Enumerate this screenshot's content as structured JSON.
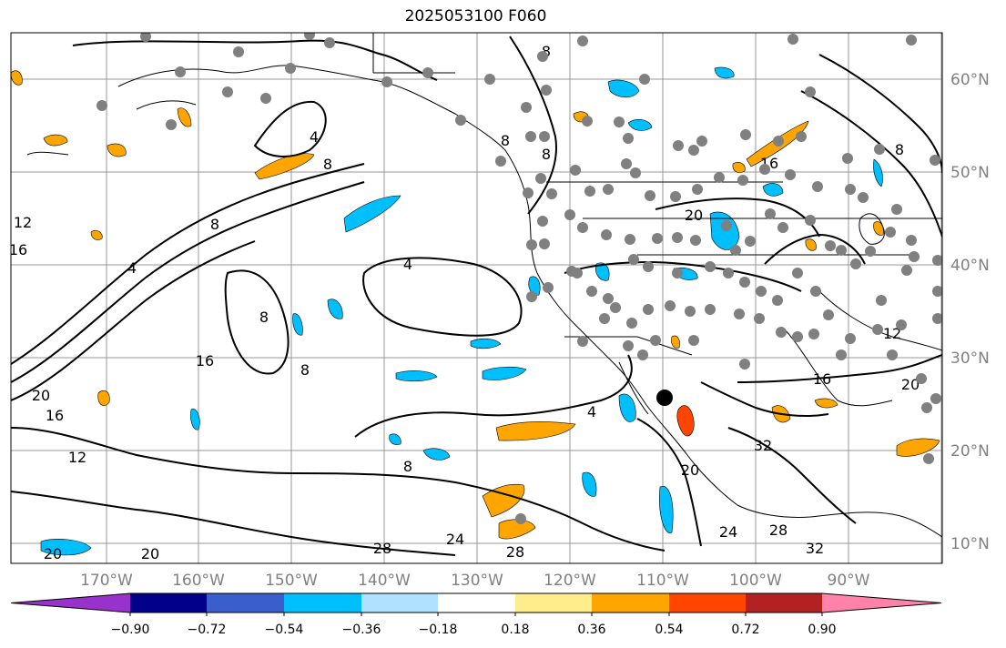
{
  "title": "2025053100 F060",
  "map": {
    "lon_ticks": [
      "170°W",
      "160°W",
      "150°W",
      "140°W",
      "130°W",
      "120°W",
      "110°W",
      "100°W",
      "90°W"
    ],
    "lat_ticks": [
      "60°N",
      "50°N",
      "40°N",
      "30°N",
      "20°N",
      "10°N"
    ],
    "gridlines": true,
    "contour_labels": [
      "4",
      "8",
      "12",
      "16",
      "20",
      "24",
      "28",
      "32"
    ],
    "marker_colors": {
      "station": "#808080",
      "center": "#000000"
    }
  },
  "colorbar": {
    "ticks": [
      "−0.90",
      "−0.72",
      "−0.54",
      "−0.36",
      "−0.18",
      "0.18",
      "0.36",
      "0.54",
      "0.72",
      "0.90"
    ],
    "colors": [
      "#9932cc",
      "#00008b",
      "#3a5fcd",
      "#00bfff",
      "#b0e2ff",
      "#ffffff",
      "#ffec8b",
      "#ffa500",
      "#ff4500",
      "#b22222",
      "#ff82ab"
    ],
    "orientation": "horizontal",
    "extend": "both"
  }
}
